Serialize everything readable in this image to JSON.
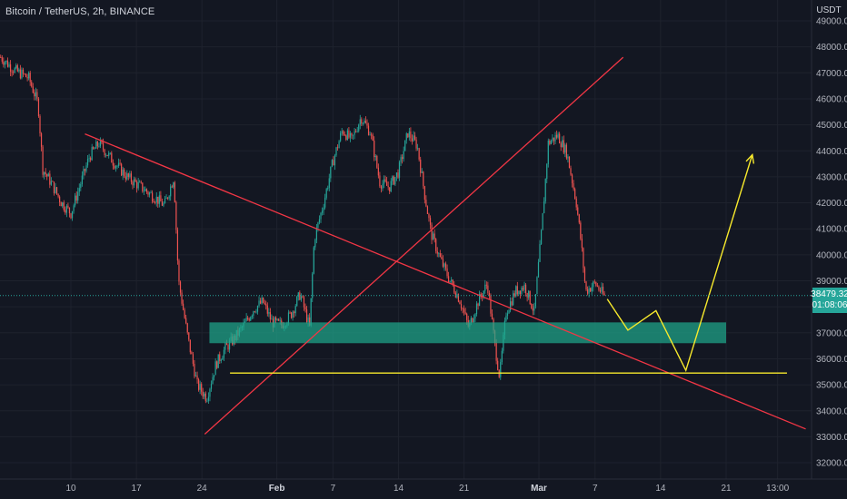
{
  "header": {
    "symbol_title": "Bitcoin / TetherUS, 2h, BINANCE",
    "currency": "USDT"
  },
  "last_price": {
    "value": "38479.32",
    "countdown": "01:08:06",
    "color": "#26a69a"
  },
  "colors": {
    "background": "#131722",
    "up_candle": "#26a69a",
    "down_candle": "#ef5350",
    "trendline": "#f23645",
    "projection": "#f7e92c",
    "zone": "#1fa68a"
  },
  "chart_data": {
    "type": "candlestick",
    "ylim": [
      31500,
      49300
    ],
    "y_ticks": [
      32000,
      33000,
      34000,
      35000,
      36000,
      37000,
      38000,
      39000,
      40000,
      41000,
      42000,
      43000,
      44000,
      45000,
      46000,
      47000,
      48000,
      49000
    ],
    "y_tick_labels": [
      "32000.00",
      "33000.00",
      "34000.00",
      "35000.00",
      "36000.00",
      "37000.00",
      "38000.00",
      "39000.00",
      "40000.00",
      "41000.00",
      "42000.00",
      "43000.00",
      "44000.00",
      "45000.00",
      "46000.00",
      "47000.00",
      "48000.00",
      "49000.00"
    ],
    "x_ticks": [
      {
        "label": "10",
        "day": 10,
        "bold": false
      },
      {
        "label": "17",
        "day": 17,
        "bold": false
      },
      {
        "label": "24",
        "day": 24,
        "bold": false
      },
      {
        "label": "Feb",
        "day": 32,
        "bold": true
      },
      {
        "label": "7",
        "day": 38,
        "bold": false
      },
      {
        "label": "14",
        "day": 45,
        "bold": false
      },
      {
        "label": "21",
        "day": 52,
        "bold": false
      },
      {
        "label": "Mar",
        "day": 60,
        "bold": true
      },
      {
        "label": "7",
        "day": 66,
        "bold": false
      },
      {
        "label": "14",
        "day": 73,
        "bold": false
      },
      {
        "label": "21",
        "day": 80,
        "bold": false
      },
      {
        "label": "13:00",
        "day": 85.5,
        "bold": false
      }
    ],
    "price_path": [
      [
        2.5,
        47600
      ],
      [
        4,
        47100
      ],
      [
        5.5,
        46800
      ],
      [
        6.5,
        45800
      ],
      [
        7,
        43300
      ],
      [
        8,
        42700
      ],
      [
        9,
        42000
      ],
      [
        10,
        41600
      ],
      [
        11,
        42700
      ],
      [
        12,
        43800
      ],
      [
        13,
        44300
      ],
      [
        14.5,
        43600
      ],
      [
        16,
        43000
      ],
      [
        17.5,
        42600
      ],
      [
        19,
        42200
      ],
      [
        20,
        41900
      ],
      [
        21,
        43000
      ],
      [
        21.5,
        39000
      ],
      [
        22.5,
        36800
      ],
      [
        23.5,
        35000
      ],
      [
        24.5,
        34500
      ],
      [
        25.5,
        35800
      ],
      [
        26.5,
        36400
      ],
      [
        27.5,
        36800
      ],
      [
        28.5,
        37300
      ],
      [
        29.5,
        37900
      ],
      [
        30.5,
        38200
      ],
      [
        31.5,
        37400
      ],
      [
        32.5,
        37300
      ],
      [
        33.5,
        37700
      ],
      [
        34.5,
        38500
      ],
      [
        35.5,
        37200
      ],
      [
        36,
        40600
      ],
      [
        37,
        42000
      ],
      [
        38,
        43600
      ],
      [
        39,
        44800
      ],
      [
        40,
        44400
      ],
      [
        41,
        45300
      ],
      [
        42,
        44700
      ],
      [
        43,
        42800
      ],
      [
        44,
        42600
      ],
      [
        45,
        43200
      ],
      [
        46,
        44700
      ],
      [
        47,
        44200
      ],
      [
        47.8,
        42300
      ],
      [
        48.5,
        40800
      ],
      [
        49.5,
        39800
      ],
      [
        50.5,
        39000
      ],
      [
        51.5,
        38300
      ],
      [
        52.5,
        37200
      ],
      [
        53.5,
        38200
      ],
      [
        54.5,
        38900
      ],
      [
        55.3,
        36500
      ],
      [
        55.8,
        35300
      ],
      [
        56.5,
        37800
      ],
      [
        57.5,
        38600
      ],
      [
        58.5,
        38800
      ],
      [
        59.5,
        37800
      ],
      [
        60.3,
        41000
      ],
      [
        61,
        44300
      ],
      [
        62,
        44600
      ],
      [
        63,
        43900
      ],
      [
        64,
        42000
      ],
      [
        64.5,
        40500
      ],
      [
        65,
        38600
      ],
      [
        66,
        38900
      ],
      [
        67,
        38400
      ]
    ],
    "overlays": {
      "resistance_line": {
        "from": [
          11.5,
          44650
        ],
        "to": [
          88.5,
          33300
        ]
      },
      "support_line": {
        "from": [
          24.3,
          33100
        ],
        "to": [
          69,
          47600
        ]
      },
      "demand_zone": {
        "x_from": 24.8,
        "x_to": 80,
        "y_from": 36600,
        "y_to": 37400
      },
      "support_level": {
        "x_from": 27,
        "x_to": 86.5,
        "y": 35450
      },
      "projection_path": [
        [
          67.3,
          38300
        ],
        [
          69.5,
          37100
        ],
        [
          72.5,
          37850
        ],
        [
          75.7,
          35550
        ],
        [
          82.8,
          43850
        ]
      ]
    }
  }
}
